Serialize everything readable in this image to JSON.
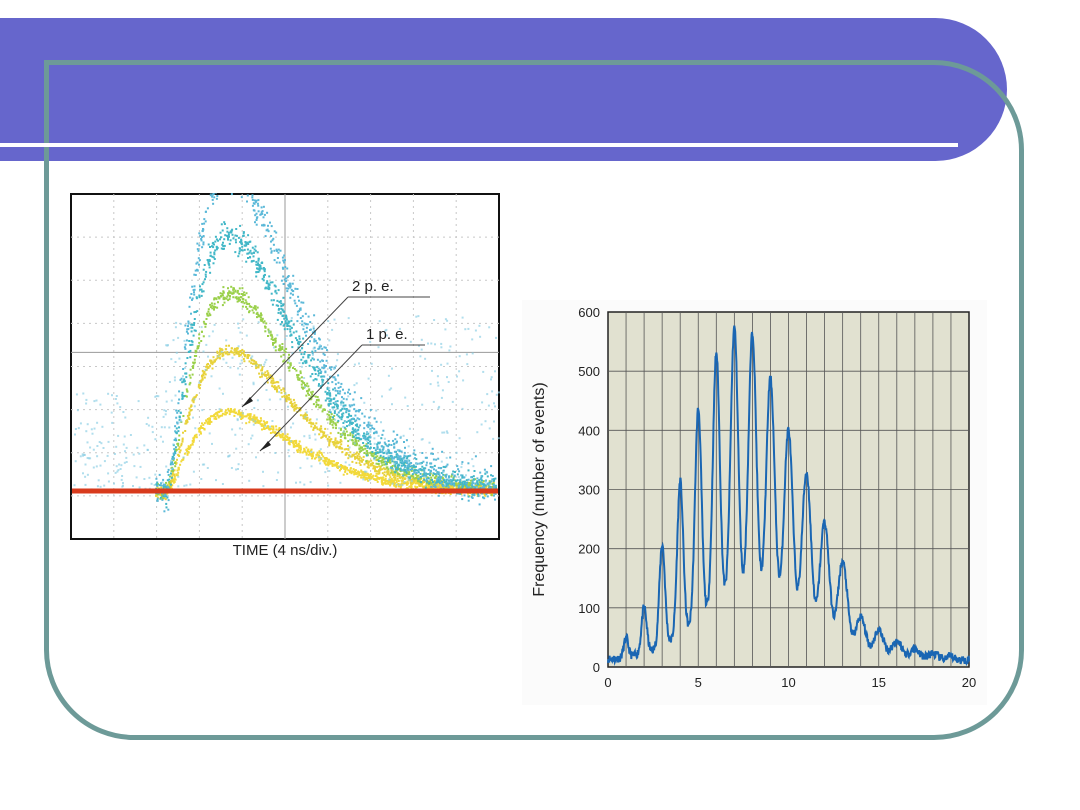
{
  "colors": {
    "banner": "#6666cc",
    "frame": "#6d9a98",
    "histogram_line": "#1a66b3",
    "histogram_background": "#e1e1d0"
  },
  "chart_data": [
    {
      "type": "scatter",
      "description_role": "oscilloscope persistence display of photomultiplier pulses",
      "xlabel": "TIME (4 ns/div.)",
      "annotations": [
        "2 p. e.",
        "1 p. e."
      ],
      "grid": true,
      "divisions_x": 10,
      "divisions_y": 8
    },
    {
      "type": "line",
      "xlabel": "",
      "ylabel": "Frequency (number of events)",
      "xlim": [
        0,
        20
      ],
      "ylim": [
        0,
        600
      ],
      "x_ticks": [
        0,
        5,
        10,
        15,
        20
      ],
      "y_ticks": [
        0,
        100,
        200,
        300,
        400,
        500,
        600
      ],
      "grid": true,
      "peaks": {
        "x": [
          1,
          2,
          3,
          4,
          5,
          6,
          7,
          8,
          9,
          10,
          11,
          12,
          13,
          14,
          15,
          16,
          17,
          18,
          19,
          20
        ],
        "y": [
          38,
          95,
          210,
          318,
          440,
          530,
          565,
          555,
          478,
          400,
          340,
          262,
          195,
          135,
          100,
          70,
          45,
          32,
          22,
          15
        ]
      }
    }
  ]
}
